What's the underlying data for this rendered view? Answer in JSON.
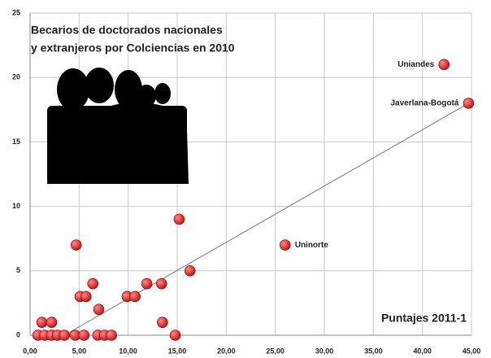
{
  "chart_data": {
    "type": "scatter",
    "title": [
      "Becarios  de doctorados nacionales",
      "y extranjeros por Colciencias en 2010"
    ],
    "annotation": "Puntajes 2011-1",
    "color": "#c81414",
    "grid": true,
    "xlim": [
      0,
      45
    ],
    "ylim": [
      0,
      25
    ],
    "xticks": [
      {
        "value": 0,
        "label": "0,00"
      },
      {
        "value": 5,
        "label": "5,00"
      },
      {
        "value": 10,
        "label": "10,00"
      },
      {
        "value": 15,
        "label": "15,00"
      },
      {
        "value": 20,
        "label": "20,00"
      },
      {
        "value": 25,
        "label": "25,00"
      },
      {
        "value": 30,
        "label": "30,00"
      },
      {
        "value": 35,
        "label": "35,00"
      },
      {
        "value": 40,
        "label": "40,00"
      },
      {
        "value": 45,
        "label": "45,00"
      }
    ],
    "yticks": [
      0,
      5,
      10,
      15,
      20,
      25
    ],
    "x": [
      42.2,
      44.7,
      26,
      4.7,
      15.2,
      16.3,
      11.9,
      13.4,
      6.4,
      5.1,
      5.7,
      9.9,
      10.7,
      7,
      13.5,
      1.2,
      2.2,
      0.8,
      1.5,
      2.2,
      2.8,
      3.5,
      4.6,
      5.5,
      6.9,
      7.6,
      8.3,
      14.8
    ],
    "y": [
      21,
      18,
      7,
      7,
      9,
      5,
      4,
      4,
      4,
      3,
      3,
      3,
      3,
      2,
      1,
      1,
      1,
      0,
      0,
      0,
      0,
      0,
      0,
      0,
      0,
      0,
      0,
      0
    ],
    "labels": [
      "Uniandes",
      "Javerlana-Bogotá",
      "Uninorte",
      null,
      null,
      null,
      null,
      null,
      null,
      null,
      null,
      null,
      null,
      null,
      null,
      null,
      null,
      null,
      null,
      null,
      null,
      null,
      null,
      null,
      null,
      null,
      null,
      null
    ],
    "trendline": {
      "x": [
        3.5,
        44.7
      ],
      "y": [
        0,
        18
      ]
    }
  }
}
